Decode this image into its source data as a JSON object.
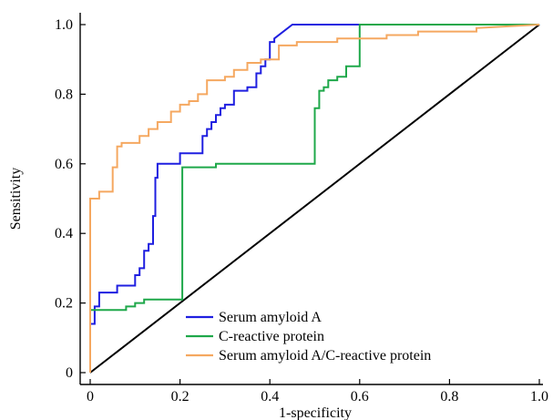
{
  "chart_data": {
    "type": "line",
    "title": "",
    "xlabel": "1-specificity",
    "ylabel": "Sensitivity",
    "xlim": [
      0,
      1
    ],
    "ylim": [
      0,
      1
    ],
    "x_ticks": [
      0,
      0.2,
      0.4,
      0.6,
      0.8,
      1.0
    ],
    "x_tick_labels": [
      "0",
      "0.2",
      "0.4",
      "0.6",
      "0.8",
      "1.0"
    ],
    "y_ticks": [
      0,
      0.2,
      0.4,
      0.6,
      0.8,
      1.0
    ],
    "y_tick_labels": [
      "0",
      "0.2",
      "0.4",
      "0.6",
      "0.8",
      "1.0"
    ],
    "grid": false,
    "legend_position": "bottom-center",
    "reference_line": {
      "x": [
        0,
        1
      ],
      "y": [
        0,
        1
      ],
      "color": "#000000"
    },
    "series": [
      {
        "name": "Serum amyloid A",
        "color": "#1f1fe0",
        "x": [
          0,
          0,
          0.01,
          0.01,
          0.02,
          0.02,
          0.04,
          0.04,
          0.06,
          0.06,
          0.1,
          0.1,
          0.11,
          0.11,
          0.12,
          0.12,
          0.13,
          0.13,
          0.14,
          0.14,
          0.145,
          0.145,
          0.15,
          0.15,
          0.2,
          0.2,
          0.22,
          0.22,
          0.25,
          0.25,
          0.26,
          0.26,
          0.27,
          0.27,
          0.28,
          0.28,
          0.29,
          0.29,
          0.3,
          0.3,
          0.32,
          0.32,
          0.35,
          0.35,
          0.37,
          0.37,
          0.38,
          0.38,
          0.39,
          0.39,
          0.4,
          0.4,
          0.41,
          0.41,
          0.45,
          0.88
        ],
        "y": [
          0,
          0.14,
          0.14,
          0.19,
          0.19,
          0.23,
          0.23,
          0.23,
          0.23,
          0.25,
          0.25,
          0.28,
          0.28,
          0.3,
          0.3,
          0.35,
          0.35,
          0.37,
          0.37,
          0.45,
          0.45,
          0.56,
          0.56,
          0.6,
          0.6,
          0.63,
          0.63,
          0.63,
          0.63,
          0.68,
          0.68,
          0.7,
          0.7,
          0.72,
          0.72,
          0.74,
          0.74,
          0.76,
          0.76,
          0.77,
          0.77,
          0.81,
          0.81,
          0.82,
          0.82,
          0.86,
          0.86,
          0.88,
          0.88,
          0.9,
          0.9,
          0.95,
          0.95,
          0.96,
          1.0,
          1.0
        ]
      },
      {
        "name": "C-reactive protein",
        "color": "#1fa84a",
        "x": [
          0,
          0,
          0.08,
          0.08,
          0.1,
          0.1,
          0.12,
          0.12,
          0.205,
          0.205,
          0.28,
          0.28,
          0.5,
          0.5,
          0.51,
          0.51,
          0.52,
          0.52,
          0.53,
          0.53,
          0.55,
          0.55,
          0.57,
          0.57,
          0.6,
          0.6,
          1.0
        ],
        "y": [
          0,
          0.18,
          0.18,
          0.19,
          0.19,
          0.2,
          0.2,
          0.21,
          0.21,
          0.59,
          0.59,
          0.6,
          0.6,
          0.76,
          0.76,
          0.81,
          0.81,
          0.82,
          0.82,
          0.84,
          0.84,
          0.85,
          0.85,
          0.88,
          0.88,
          1.0,
          1.0
        ]
      },
      {
        "name": "Serum amyloid A/C-reactive protein",
        "color": "#f5a860",
        "x": [
          0,
          0,
          0.02,
          0.02,
          0.03,
          0.03,
          0.05,
          0.05,
          0.06,
          0.06,
          0.07,
          0.07,
          0.11,
          0.11,
          0.13,
          0.13,
          0.15,
          0.15,
          0.18,
          0.18,
          0.2,
          0.2,
          0.22,
          0.22,
          0.24,
          0.24,
          0.26,
          0.26,
          0.3,
          0.3,
          0.32,
          0.32,
          0.35,
          0.35,
          0.38,
          0.38,
          0.42,
          0.42,
          0.46,
          0.46,
          0.55,
          0.55,
          0.66,
          0.66,
          0.73,
          0.73,
          0.86,
          0.86,
          1.0
        ],
        "y": [
          0,
          0.5,
          0.5,
          0.52,
          0.52,
          0.52,
          0.52,
          0.59,
          0.59,
          0.65,
          0.65,
          0.66,
          0.66,
          0.68,
          0.68,
          0.7,
          0.7,
          0.72,
          0.72,
          0.75,
          0.75,
          0.77,
          0.77,
          0.78,
          0.78,
          0.8,
          0.8,
          0.84,
          0.84,
          0.85,
          0.85,
          0.87,
          0.87,
          0.89,
          0.89,
          0.9,
          0.9,
          0.94,
          0.94,
          0.95,
          0.95,
          0.96,
          0.96,
          0.97,
          0.97,
          0.98,
          0.98,
          0.99,
          1.0
        ]
      }
    ]
  }
}
